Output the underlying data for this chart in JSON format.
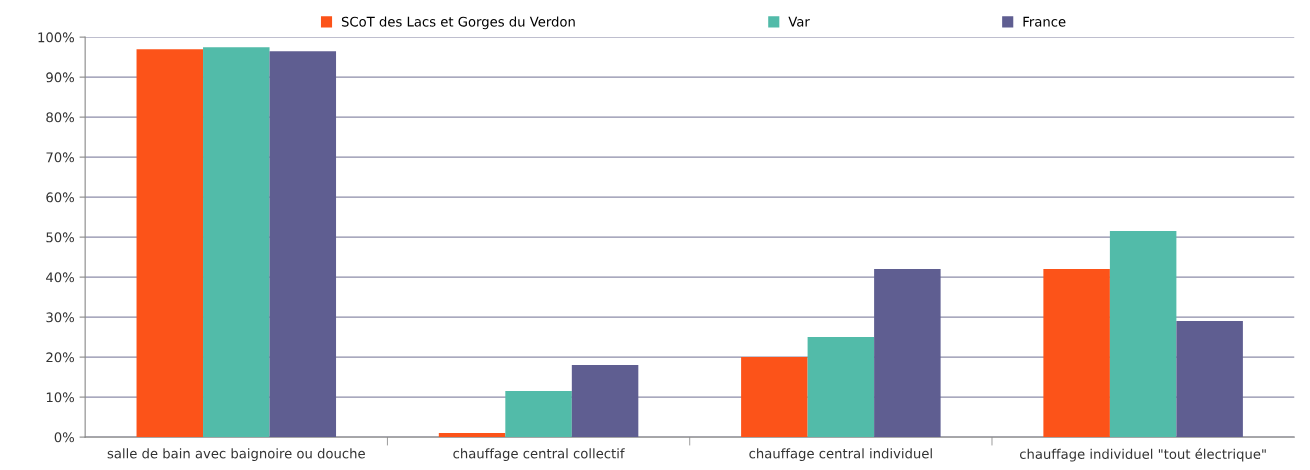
{
  "chart_data": {
    "type": "bar",
    "categories": [
      "salle de bain avec baignoire ou douche",
      "chauffage central collectif",
      "chauffage central individuel",
      "chauffage individuel \"tout électrique\""
    ],
    "series": [
      {
        "name": "SCoT des Lacs et Gorges du Verdon",
        "color": "#fc5319",
        "values": [
          97,
          1,
          20,
          42
        ]
      },
      {
        "name": "Var",
        "color": "#52bba9",
        "values": [
          97.5,
          11.5,
          25,
          51.5
        ]
      },
      {
        "name": "France",
        "color": "#5f5e91",
        "values": [
          96.5,
          18,
          42,
          29
        ]
      }
    ],
    "ylim": [
      0,
      100
    ],
    "yticks": [
      {
        "value": 0,
        "label": "0%"
      },
      {
        "value": 10,
        "label": "10%"
      },
      {
        "value": 20,
        "label": "20%"
      },
      {
        "value": 30,
        "label": "30%"
      },
      {
        "value": 40,
        "label": "40%"
      },
      {
        "value": 50,
        "label": "50%"
      },
      {
        "value": 60,
        "label": "60%"
      },
      {
        "value": 70,
        "label": "70%"
      },
      {
        "value": 80,
        "label": "80%"
      },
      {
        "value": 90,
        "label": "90%"
      },
      {
        "value": 100,
        "label": "100%"
      }
    ],
    "grid": "y",
    "legend": "top",
    "marker": "square"
  }
}
